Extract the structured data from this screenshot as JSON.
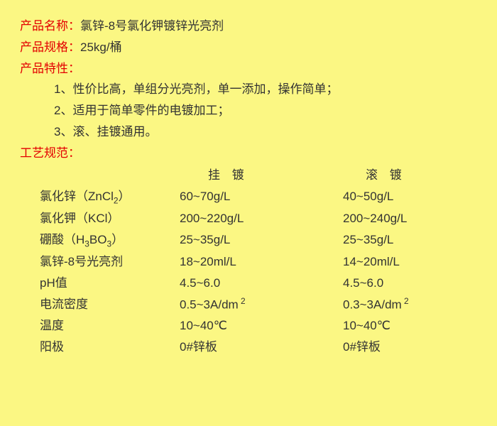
{
  "labels": {
    "name": "产品名称：",
    "spec": "产品规格：",
    "features": "产品特性：",
    "process": "工艺规范："
  },
  "name_value": "氯锌-8号氯化钾镀锌光亮剂",
  "spec_value": "25kg/桶",
  "features": [
    "1、性价比高，单组分光亮剂，单一添加，操作简单；",
    "2、适用于简单零件的电镀加工；",
    "3、滚、挂镀通用。"
  ],
  "headers": {
    "hang": "挂 镀",
    "roll": "滚 镀"
  },
  "rows": [
    {
      "param_html": "氯化锌（ZnCl<sub>2</sub>）",
      "hang": "60~70g/L",
      "roll": "40~50g/L"
    },
    {
      "param_html": "氯化钾（KCl）",
      "hang": "200~220g/L",
      "roll": "200~240g/L"
    },
    {
      "param_html": "硼酸（H<sub>3</sub>BO<sub>3</sub>）",
      "hang": "25~35g/L",
      "roll": "25~35g/L"
    },
    {
      "param_html": "氯锌-8号光亮剂",
      "hang": "18~20ml/L",
      "roll": "14~20ml/L"
    },
    {
      "param_html": "pH值",
      "hang": "4.5~6.0",
      "roll": "4.5~6.0"
    },
    {
      "param_html": "电流密度",
      "hang_html": "0.5~3A/dm<sup> 2</sup>",
      "roll_html": "0.3~3A/dm<sup> 2</sup>"
    },
    {
      "param_html": "温度",
      "hang": "10~40℃",
      "roll": "10~40℃"
    },
    {
      "param_html": "阳极",
      "hang": " 0#锌板",
      "roll": " 0#锌板"
    }
  ],
  "colors": {
    "background": "#fbf783",
    "label": "#e30000",
    "text": "#333333"
  }
}
